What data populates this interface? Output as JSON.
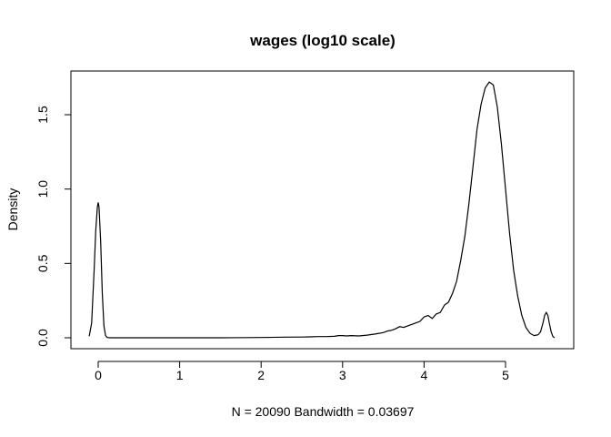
{
  "chart_data": {
    "type": "line",
    "title": "wages (log10 scale)",
    "xlabel": "N = 20090   Bandwidth = 0.03697",
    "ylabel": "Density",
    "xlim": [
      -0.1,
      5.6
    ],
    "ylim": [
      0,
      1.72
    ],
    "x_ticks": [
      0,
      1,
      2,
      3,
      4,
      5
    ],
    "x_tick_labels": [
      "0",
      "1",
      "2",
      "3",
      "4",
      "5"
    ],
    "y_ticks": [
      0,
      0.5,
      1.0,
      1.5
    ],
    "y_tick_labels": [
      "0.0",
      "0.5",
      "1.0",
      "1.5"
    ],
    "grid": false,
    "series": [
      {
        "x": [
          -0.11,
          -0.08,
          -0.05,
          -0.03,
          -0.01,
          0.0,
          0.01,
          0.03,
          0.05,
          0.07,
          0.09,
          0.11,
          0.15,
          0.5,
          1.0,
          1.5,
          2.0,
          2.3,
          2.5,
          2.6,
          2.7,
          2.8,
          2.9,
          2.95,
          3.0,
          3.05,
          3.1,
          3.2,
          3.3,
          3.4,
          3.5,
          3.55,
          3.6,
          3.65,
          3.7,
          3.75,
          3.8,
          3.85,
          3.9,
          3.95,
          4.0,
          4.05,
          4.1,
          4.15,
          4.2,
          4.25,
          4.3,
          4.35,
          4.4,
          4.45,
          4.5,
          4.55,
          4.6,
          4.65,
          4.7,
          4.75,
          4.8,
          4.85,
          4.9,
          4.95,
          5.0,
          5.05,
          5.1,
          5.15,
          5.2,
          5.25,
          5.3,
          5.35,
          5.4,
          5.43,
          5.46,
          5.48,
          5.5,
          5.52,
          5.54,
          5.56,
          5.58,
          5.6
        ],
        "y": [
          0.01,
          0.1,
          0.45,
          0.72,
          0.88,
          0.91,
          0.88,
          0.65,
          0.3,
          0.08,
          0.015,
          0.002,
          0.0,
          0.0,
          0.0,
          0.0,
          0.002,
          0.004,
          0.005,
          0.006,
          0.008,
          0.008,
          0.01,
          0.015,
          0.015,
          0.012,
          0.015,
          0.012,
          0.018,
          0.025,
          0.035,
          0.045,
          0.05,
          0.06,
          0.075,
          0.07,
          0.08,
          0.09,
          0.1,
          0.11,
          0.14,
          0.15,
          0.13,
          0.16,
          0.17,
          0.22,
          0.24,
          0.3,
          0.38,
          0.52,
          0.68,
          0.9,
          1.15,
          1.4,
          1.57,
          1.68,
          1.72,
          1.7,
          1.55,
          1.3,
          1.0,
          0.7,
          0.45,
          0.28,
          0.15,
          0.07,
          0.03,
          0.015,
          0.02,
          0.04,
          0.1,
          0.15,
          0.17,
          0.15,
          0.09,
          0.04,
          0.01,
          0.0
        ]
      }
    ]
  }
}
